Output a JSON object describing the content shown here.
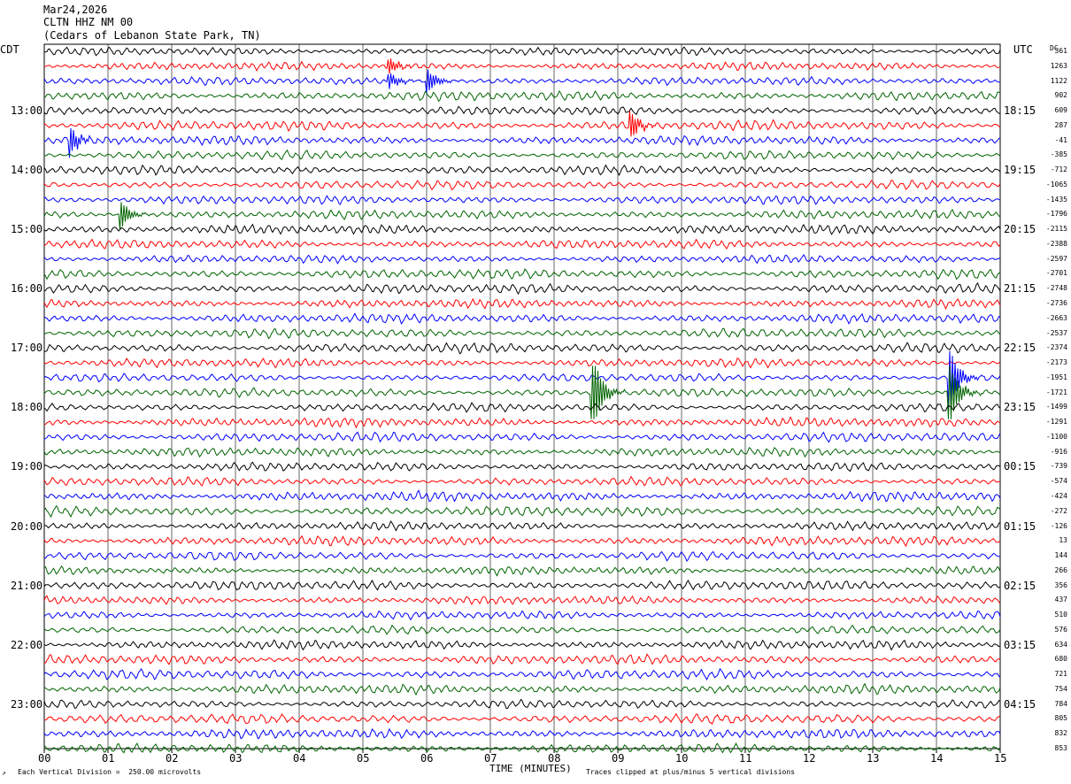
{
  "header": {
    "date": "Mar24,2026",
    "station": "CLTN HHZ NM 00",
    "location": "(Cedars of Lebanon State Park, TN)"
  },
  "left_timezone": "CDT",
  "right_timezone": "UTC",
  "dc_label": "DC",
  "footer": {
    "vertical_division": "Each Vertical Division =  250.00 microvolts",
    "clip_note": "Traces clipped at plus/minus 5 vertical divisions"
  },
  "chart_data": {
    "type": "line",
    "title": "",
    "xlabel": "TIME (MINUTES)",
    "x_ticks": [
      "00",
      "01",
      "02",
      "03",
      "04",
      "05",
      "06",
      "07",
      "08",
      "09",
      "10",
      "11",
      "12",
      "13",
      "14",
      "15"
    ],
    "xlim": [
      0,
      15
    ],
    "grid": "vertical lines at each minute",
    "trace_colors": [
      "#000000",
      "#ff0000",
      "#0000ff",
      "#006400"
    ],
    "left_hour_labels": [
      "13:00",
      "14:00",
      "15:00",
      "16:00",
      "17:00",
      "18:00",
      "19:00",
      "20:00",
      "21:00",
      "22:00",
      "23:00"
    ],
    "right_hour_labels": [
      "18:15",
      "19:15",
      "20:15",
      "21:15",
      "22:15",
      "23:15",
      "00:15",
      "01:15",
      "02:15",
      "03:15",
      "04:15"
    ],
    "dc_offsets": [
      "361",
      "1263",
      "1122",
      "902",
      "609",
      "287",
      "-41",
      "-385",
      "-712",
      "-1065",
      "-1435",
      "-1796",
      "-2115",
      "-2388",
      "-2597",
      "-2701",
      "-2748",
      "-2736",
      "-2663",
      "-2537",
      "-2374",
      "-2173",
      "-1951",
      "-1721",
      "-1499",
      "-1291",
      "-1100",
      "-916",
      "-739",
      "-574",
      "-424",
      "-272",
      "-126",
      "13",
      "144",
      "266",
      "356",
      "437",
      "510",
      "576",
      "634",
      "680",
      "721",
      "754",
      "784",
      "805",
      "832",
      "853"
    ],
    "events": [
      {
        "trace": 1,
        "minute": 5.4,
        "amplitude": 3
      },
      {
        "trace": 2,
        "minute": 5.4,
        "amplitude": 3
      },
      {
        "trace": 2,
        "minute": 6.0,
        "amplitude": 3
      },
      {
        "trace": 5,
        "minute": 9.2,
        "amplitude": 2
      },
      {
        "trace": 6,
        "minute": 0.4,
        "amplitude": 2
      },
      {
        "trace": 11,
        "minute": 1.2,
        "amplitude": 2
      },
      {
        "trace": 22,
        "minute": 14.2,
        "amplitude": 6
      },
      {
        "trace": 23,
        "minute": 8.6,
        "amplitude": 6
      },
      {
        "trace": 23,
        "minute": 14.2,
        "amplitude": 6
      }
    ]
  }
}
